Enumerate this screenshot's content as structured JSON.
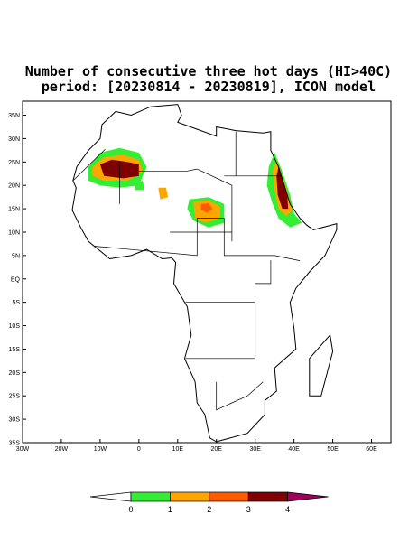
{
  "map": {
    "title": "Number of consecutive three hot days (HI>40C)",
    "subtitle": "period: [20230814 - 20230819], ICON model",
    "xlim": [
      -30,
      65
    ],
    "ylim": [
      -35,
      38
    ],
    "xticks": [
      {
        "value": -30,
        "label": "30W"
      },
      {
        "value": -20,
        "label": "20W"
      },
      {
        "value": -10,
        "label": "10W"
      },
      0,
      {
        "value": 10,
        "label": "10E"
      },
      {
        "value": 20,
        "label": "20E"
      },
      {
        "value": 30,
        "label": "30E"
      },
      {
        "value": 40,
        "label": "40E"
      },
      {
        "value": 50,
        "label": "50E"
      },
      {
        "value": 60,
        "label": "60E"
      }
    ],
    "yticks": [
      {
        "value": 35,
        "label": "35N"
      },
      {
        "value": 30,
        "label": "30N"
      },
      {
        "value": 25,
        "label": "25N"
      },
      {
        "value": 20,
        "label": "20N"
      },
      {
        "value": 15,
        "label": "15N"
      },
      {
        "value": 10,
        "label": "10N"
      },
      {
        "value": 5,
        "label": "5N"
      },
      {
        "value": 0,
        "label": "EQ"
      },
      {
        "value": -5,
        "label": "5S"
      },
      {
        "value": -10,
        "label": "10S"
      },
      {
        "value": -15,
        "label": "15S"
      },
      {
        "value": -20,
        "label": "20S"
      },
      {
        "value": -25,
        "label": "25S"
      },
      {
        "value": -30,
        "label": "30S"
      },
      {
        "value": -35,
        "label": "35S"
      }
    ],
    "colorbar": {
      "levels": [
        0,
        1,
        2,
        3,
        4
      ],
      "colors": [
        "#ffffff",
        "#33ee33",
        "#ffa500",
        "#ff5a00",
        "#800000",
        "#a0005a"
      ]
    }
  }
}
